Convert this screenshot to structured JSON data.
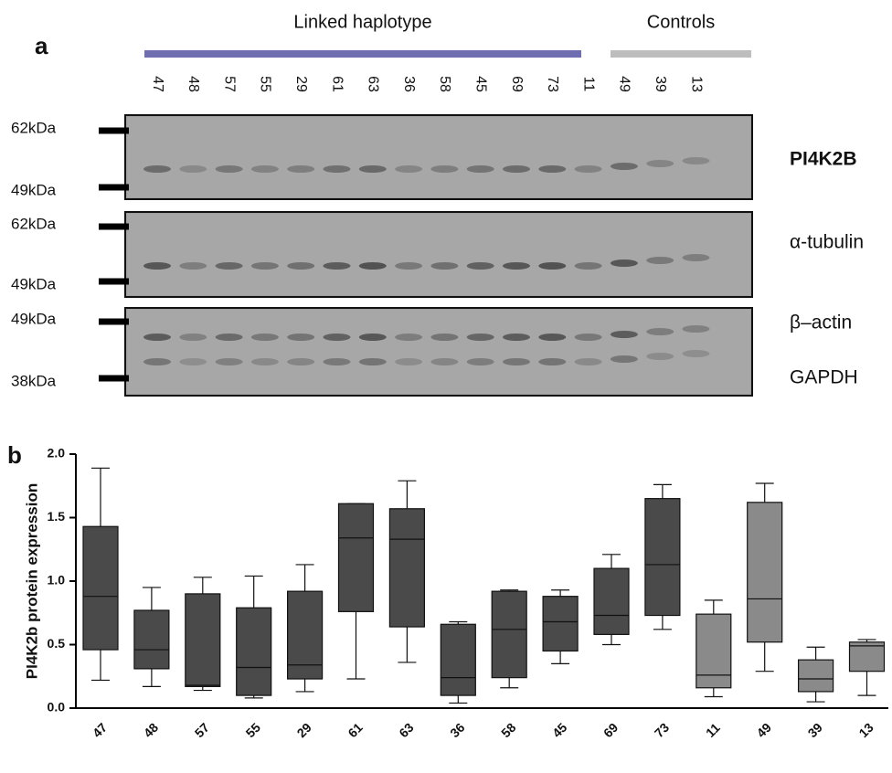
{
  "panel_a": {
    "label": "a",
    "groups": [
      {
        "label": "Linked haplotype",
        "color": "#6e6eb0"
      },
      {
        "label": "Controls",
        "color": "#bdbdbd"
      }
    ],
    "lanes": [
      "47",
      "48",
      "57",
      "55",
      "29",
      "61",
      "63",
      "36",
      "58",
      "45",
      "69",
      "73",
      "11",
      "49",
      "39",
      "13"
    ],
    "blots": [
      {
        "markers": [
          "62kDa",
          "49kDa"
        ],
        "proteins": [
          "PI4K2B"
        ]
      },
      {
        "markers": [
          "62kDa",
          "49kDa"
        ],
        "proteins": [
          "α-tubulin"
        ]
      },
      {
        "markers": [
          "49kDa",
          "38kDa"
        ],
        "proteins": [
          "β–actin",
          "GAPDH"
        ]
      }
    ]
  },
  "chart_data": {
    "type": "box",
    "panel_label": "b",
    "ylabel": "PI4K2b protein expression",
    "categories": [
      "47",
      "48",
      "57",
      "55",
      "29",
      "61",
      "63",
      "36",
      "58",
      "45",
      "69",
      "73",
      "11",
      "49",
      "39",
      "13"
    ],
    "low": [
      0.22,
      0.17,
      0.14,
      0.08,
      0.13,
      0.23,
      0.36,
      0.04,
      0.16,
      0.35,
      0.5,
      0.62,
      0.09,
      0.29,
      0.05,
      0.1
    ],
    "q1": [
      0.46,
      0.31,
      0.17,
      0.1,
      0.23,
      0.76,
      0.64,
      0.1,
      0.24,
      0.45,
      0.58,
      0.73,
      0.16,
      0.52,
      0.13,
      0.29
    ],
    "median": [
      0.88,
      0.46,
      0.18,
      0.32,
      0.34,
      1.34,
      1.33,
      0.24,
      0.62,
      0.68,
      0.73,
      1.13,
      0.26,
      0.86,
      0.23,
      0.49
    ],
    "q3": [
      1.43,
      0.77,
      0.9,
      0.79,
      0.92,
      1.61,
      1.57,
      0.66,
      0.92,
      0.88,
      1.1,
      1.65,
      0.74,
      1.62,
      0.38,
      0.52
    ],
    "high": [
      1.89,
      0.95,
      1.03,
      1.04,
      1.13,
      1.61,
      1.79,
      0.68,
      0.93,
      0.93,
      1.21,
      1.76,
      0.85,
      1.77,
      0.48,
      0.54
    ],
    "colors": [
      "#4a4a4a",
      "#4a4a4a",
      "#4a4a4a",
      "#4a4a4a",
      "#4a4a4a",
      "#4a4a4a",
      "#4a4a4a",
      "#4a4a4a",
      "#4a4a4a",
      "#4a4a4a",
      "#4a4a4a",
      "#4a4a4a",
      "#8a8a8a",
      "#8a8a8a",
      "#8a8a8a",
      "#8a8a8a"
    ],
    "ylim": [
      0,
      2
    ],
    "yticks": [
      {
        "value": 0,
        "label": "0.0"
      },
      0.5,
      {
        "value": 1,
        "label": "1.0"
      },
      1.5,
      {
        "value": 2,
        "label": "2.0"
      }
    ]
  }
}
